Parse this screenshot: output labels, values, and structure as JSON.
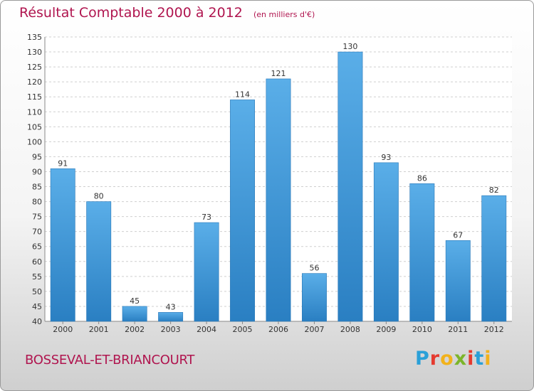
{
  "header": {
    "title": "Résultat Comptable 2000 à 2012",
    "subtitle": "(en milliers d'€)"
  },
  "footer": {
    "commune": "BOSSEVAL-ET-BRIANCOURT",
    "brand": "Proxiti",
    "brand_colors": [
      "#2aa0d8",
      "#e53a2f",
      "#f2b21b",
      "#7cb52a",
      "#e53a2f",
      "#2aa0d8",
      "#f2b21b"
    ]
  },
  "colors": {
    "bar_top": "#5aaee8",
    "bar_bottom": "#2a7fc2",
    "axis_text": "#333333",
    "grid": "#cfcfcf"
  },
  "chart_data": {
    "type": "bar",
    "categories": [
      "2000",
      "2001",
      "2002",
      "2003",
      "2004",
      "2005",
      "2006",
      "2007",
      "2008",
      "2009",
      "2010",
      "2011",
      "2012"
    ],
    "values": [
      91,
      80,
      45,
      43,
      73,
      114,
      121,
      56,
      130,
      93,
      86,
      67,
      82
    ],
    "ylim": [
      40,
      135
    ],
    "ytick_step": 5,
    "grid": true,
    "xlabel": "",
    "ylabel": ""
  }
}
